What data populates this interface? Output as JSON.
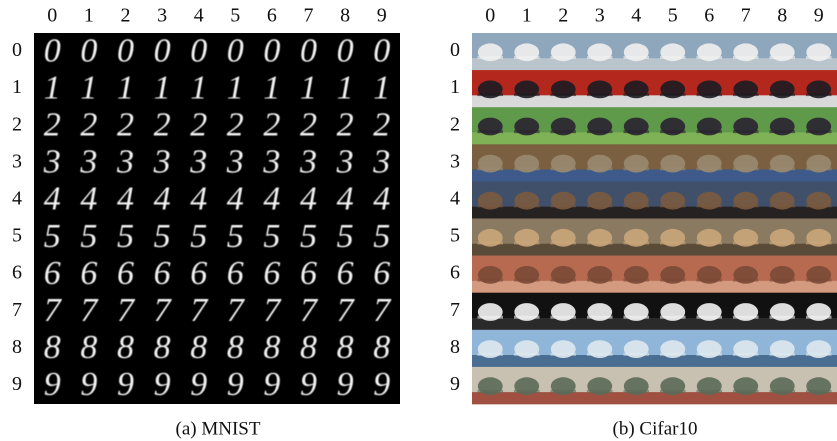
{
  "panels": [
    {
      "column_labels": [
        "0",
        "1",
        "2",
        "3",
        "4",
        "5",
        "6",
        "7",
        "8",
        "9"
      ],
      "row_labels": [
        "0",
        "1",
        "2",
        "3",
        "4",
        "5",
        "6",
        "7",
        "8",
        "9"
      ],
      "caption": "(a) MNIST"
    },
    {
      "column_labels": [
        "0",
        "1",
        "2",
        "3",
        "4",
        "5",
        "6",
        "7",
        "8",
        "9"
      ],
      "row_labels": [
        "0",
        "1",
        "2",
        "3",
        "4",
        "5",
        "6",
        "7",
        "8",
        "9"
      ],
      "caption": "(b) Cifar10"
    }
  ]
}
